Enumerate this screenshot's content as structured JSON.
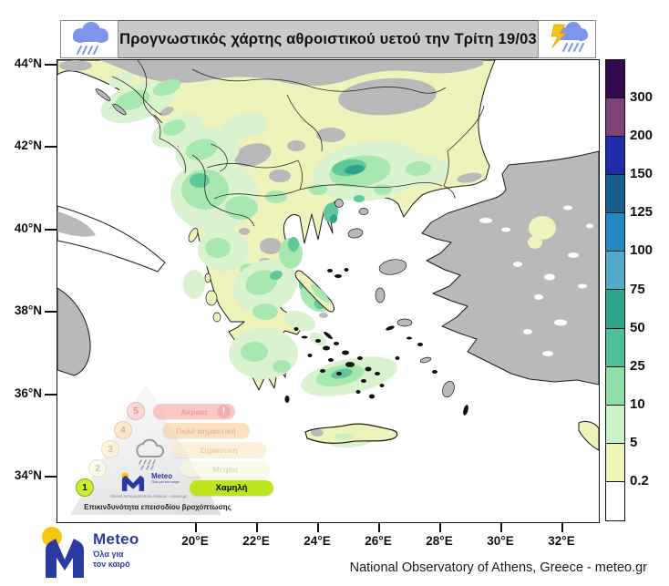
{
  "title_bar": {
    "title": "Προγνωστικός χάρτης αθροιστικού υετού την Τρίτη 19/03"
  },
  "axes": {
    "lat_labels": [
      "44°N",
      "42°N",
      "40°N",
      "38°N",
      "36°N",
      "34°N"
    ],
    "lon_labels": [
      "20°E",
      "22°E",
      "24°E",
      "26°E",
      "28°E",
      "30°E",
      "32°E"
    ]
  },
  "colorbar": {
    "boundary_values": [
      "300",
      "200",
      "150",
      "125",
      "100",
      "75",
      "50",
      "25",
      "10",
      "5",
      "0.2"
    ],
    "segment_colors_top_to_bottom": [
      "#330a4f",
      "#7d4278",
      "#1e2bab",
      "#17608e",
      "#2489c2",
      "#54aac8",
      "#2fa48c",
      "#4cc09a",
      "#90dfab",
      "#caf4c8",
      "#edf4b6",
      "#ffffff"
    ]
  },
  "map_colors": {
    "land_light_precip": "#edf3ba",
    "sea_or_no_data": "#ffffff",
    "dry_gray": "#b9b9b9",
    "coastline": "#1a1a1a",
    "green_levels": [
      "#d9f2cf",
      "#a9e7b1",
      "#5fc99a",
      "#2ca58b"
    ]
  },
  "risk_pyramid": {
    "caption": "Επικινδυνότητα επεισοδίου βροχόπτωσης",
    "logo_name": "Meteo",
    "logo_sub": "Όλα για τον καιρό",
    "logo_caption": "Εθνικό Αστεροσκοπείο Αθηνών - meteo.gr",
    "levels": [
      {
        "number": "5",
        "label": "Ακραία",
        "badge": "!",
        "pill": "#f5a9a2",
        "text": "#dd6a60",
        "circle_fill": "#f8d0cc",
        "circle_border": "#ee9a92",
        "circle_text": "#dd6a60",
        "active": false
      },
      {
        "number": "4",
        "label": "Πολύ σημαντική",
        "badge": null,
        "pill": "#f8cf9e",
        "text": "#e3954a",
        "circle_fill": "#fbe3c4",
        "circle_border": "#f0b984",
        "circle_text": "#e3954a",
        "active": false
      },
      {
        "number": "3",
        "label": "Σημαντική",
        "badge": null,
        "pill": "#fae8c4",
        "text": "#dcb273",
        "circle_fill": "#fcf2da",
        "circle_border": "#eccf9e",
        "circle_text": "#dcb273",
        "active": false
      },
      {
        "number": "2",
        "label": "Μέτρια",
        "badge": null,
        "pill": "#fbf9da",
        "text": "#c3c1a0",
        "circle_fill": "#fdfce9",
        "circle_border": "#dedbb0",
        "circle_text": "#b8b694",
        "active": false
      },
      {
        "number": "1",
        "label": "Χαμηλή",
        "badge": null,
        "pill": "#bce51e",
        "text": "#000000",
        "circle_fill": "#c8ef30",
        "circle_border": "#92ad1c",
        "circle_text": "#000000",
        "active": true
      }
    ]
  },
  "footer": {
    "logo_name": "Meteo",
    "logo_sub_line1": "Όλα για",
    "logo_sub_line2": "τον καιρό",
    "attribution": "National Observatory of Athens, Greece - meteo.gr"
  }
}
